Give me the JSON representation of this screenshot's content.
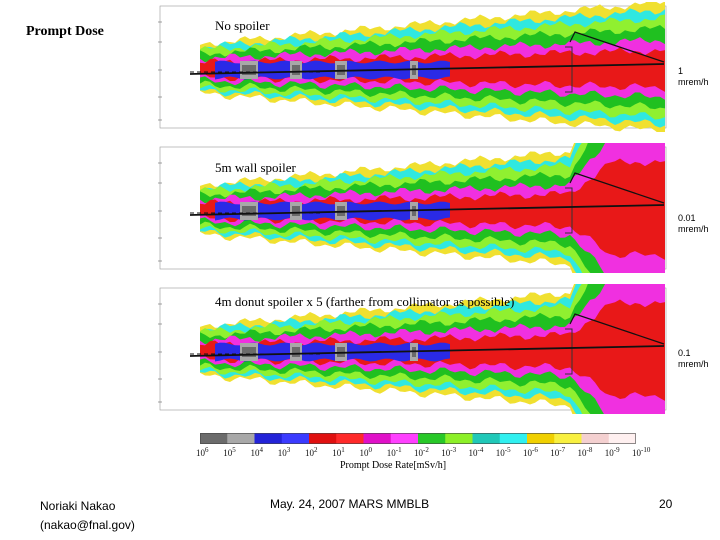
{
  "slide": {
    "title": "Prompt Dose"
  },
  "panels": [
    {
      "label": "No spoiler",
      "rate_value": "1",
      "rate_unit": "mrem/h",
      "profile": "narrow"
    },
    {
      "label": "5m wall spoiler",
      "rate_value": "0.01",
      "rate_unit": "mrem/h",
      "profile": "wide"
    },
    {
      "label": "4m donut spoiler x 5 (farther from collimator as possible)",
      "rate_value": "0.1",
      "rate_unit": "mrem/h",
      "profile": "wide"
    }
  ],
  "colorbar": {
    "title": "Prompt Dose Rate[mSv/h]",
    "colors": [
      "#6b6b6b",
      "#a8a8a8",
      "#2323d8",
      "#3b3bff",
      "#e01010",
      "#ff2a2a",
      "#e010c8",
      "#ff40ff",
      "#28c828",
      "#8cf028",
      "#20c8b8",
      "#30f0f0",
      "#f0d000",
      "#f8f040",
      "#f4d0d0",
      "#fff0f0"
    ],
    "tick_labels": [
      "10^6",
      "10^5",
      "10^4",
      "10^3",
      "10^2",
      "10^1",
      "10^0",
      "10^-1",
      "10^-2",
      "10^-3",
      "10^-4",
      "10^-5",
      "10^-6",
      "10^-7",
      "10^-8",
      "10^-9",
      "10^-10"
    ]
  },
  "colors": {
    "gray_dark": "#6b6b6b",
    "gray_light": "#a8a8a8",
    "blue": "#2a2ae6",
    "red": "#e81818",
    "magenta": "#f030e0",
    "green_dark": "#20c020",
    "green_light": "#90f030",
    "cyan": "#30e8e0",
    "yellow": "#f0e030"
  },
  "footer": {
    "author_line1": "Noriaki Nakao",
    "author_line2": "(nakao@fnal.gov)",
    "event": "May. 24, 2007 MARS MMBLB",
    "page": "20"
  }
}
